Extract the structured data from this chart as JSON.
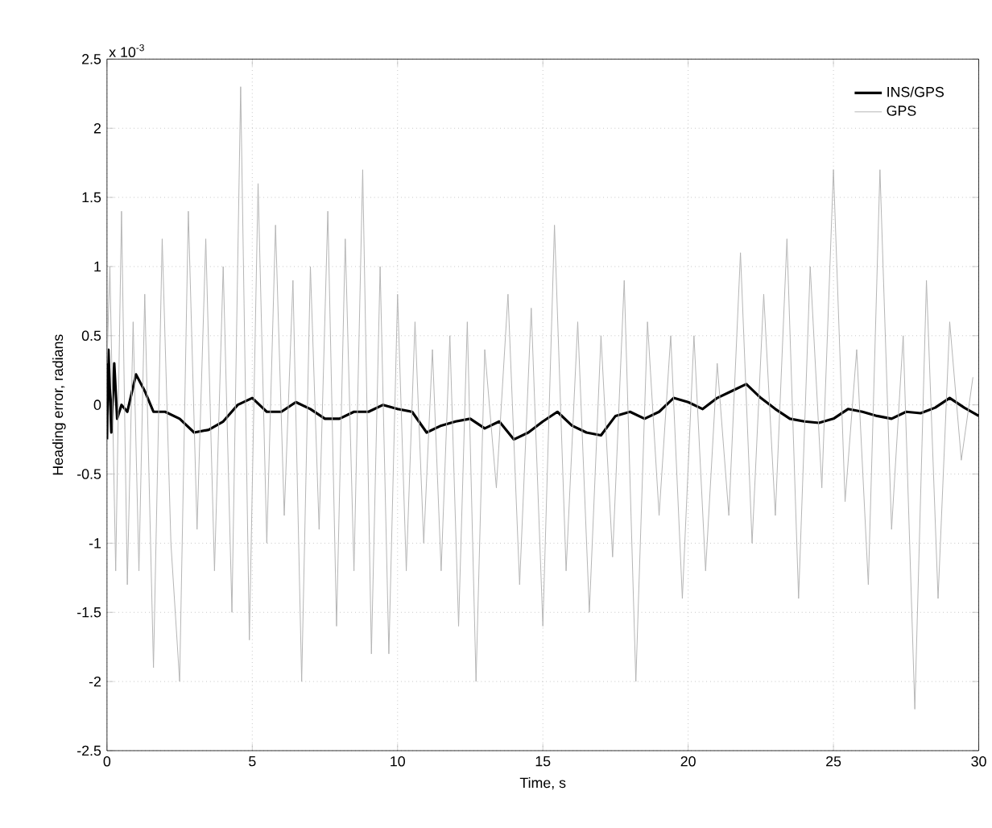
{
  "chart_data": {
    "type": "line",
    "xlabel": "Time, s",
    "ylabel": "Heading error, radians",
    "annotations": [
      "x 10$^{-3}$"
    ],
    "xlim": [
      0,
      30
    ],
    "xticks": [
      0,
      5,
      10,
      15,
      20,
      25,
      30
    ],
    "ylim": [
      -2.5,
      2.5
    ],
    "yticks": [
      -2.5,
      -2,
      -1.5,
      -1,
      -0.5,
      0,
      0.5,
      1,
      1.5,
      2,
      2.5
    ],
    "grid": true,
    "legend": "top right",
    "series": [
      {
        "name": "GPS",
        "color": "#b4b4b4",
        "line_style": "solid",
        "x": [
          0,
          0.1,
          0.3,
          0.5,
          0.7,
          0.9,
          1.1,
          1.3,
          1.6,
          1.9,
          2.2,
          2.5,
          2.8,
          3.1,
          3.4,
          3.7,
          4.0,
          4.3,
          4.6,
          4.9,
          5.2,
          5.5,
          5.8,
          6.1,
          6.4,
          6.7,
          7.0,
          7.3,
          7.6,
          7.9,
          8.2,
          8.5,
          8.8,
          9.1,
          9.4,
          9.7,
          10.0,
          10.3,
          10.6,
          10.9,
          11.2,
          11.5,
          11.8,
          12.1,
          12.4,
          12.7,
          13.0,
          13.4,
          13.8,
          14.2,
          14.6,
          15.0,
          15.4,
          15.8,
          16.2,
          16.6,
          17.0,
          17.4,
          17.8,
          18.2,
          18.6,
          19.0,
          19.4,
          19.8,
          20.2,
          20.6,
          21.0,
          21.4,
          21.8,
          22.2,
          22.6,
          23.0,
          23.4,
          23.8,
          24.2,
          24.6,
          25.0,
          25.4,
          25.8,
          26.2,
          26.6,
          27.0,
          27.4,
          27.8,
          28.2,
          28.6,
          29.0,
          29.4,
          29.8
        ],
        "values": [
          0.3,
          1.0,
          -1.2,
          1.4,
          -1.3,
          0.6,
          -1.2,
          0.8,
          -1.9,
          1.2,
          -1.0,
          -2.0,
          1.4,
          -0.9,
          1.2,
          -1.2,
          1.0,
          -1.5,
          2.3,
          -1.7,
          1.6,
          -1.0,
          1.3,
          -0.8,
          0.9,
          -2.0,
          1.0,
          -0.9,
          1.4,
          -1.6,
          1.2,
          -1.2,
          1.7,
          -1.8,
          1.0,
          -1.8,
          0.8,
          -1.2,
          0.6,
          -1.0,
          0.4,
          -1.2,
          0.5,
          -1.6,
          0.6,
          -2.0,
          0.4,
          -0.6,
          0.8,
          -1.3,
          0.7,
          -1.6,
          1.3,
          -1.2,
          0.6,
          -1.5,
          0.5,
          -1.1,
          0.9,
          -2.0,
          0.6,
          -0.8,
          0.5,
          -1.4,
          0.5,
          -1.2,
          0.3,
          -0.8,
          1.1,
          -1.0,
          0.8,
          -0.8,
          1.2,
          -1.4,
          1.0,
          -0.6,
          1.7,
          -0.7,
          0.4,
          -1.3,
          1.7,
          -0.9,
          0.5,
          -2.2,
          0.9,
          -1.4,
          0.6,
          -0.4,
          0.2
        ]
      },
      {
        "name": "INS/GPS",
        "color": "#000000",
        "line_style": "solid",
        "x": [
          0,
          0.05,
          0.15,
          0.25,
          0.35,
          0.5,
          0.7,
          1.0,
          1.3,
          1.6,
          2.0,
          2.5,
          3.0,
          3.5,
          4.0,
          4.5,
          5.0,
          5.5,
          6.0,
          6.5,
          7.0,
          7.5,
          8.0,
          8.5,
          9.0,
          9.5,
          10.0,
          10.5,
          11.0,
          11.5,
          12.0,
          12.5,
          13.0,
          13.5,
          14.0,
          14.5,
          15.0,
          15.5,
          16.0,
          16.5,
          17.0,
          17.5,
          18.0,
          18.5,
          19.0,
          19.5,
          20.0,
          20.5,
          21.0,
          21.5,
          22.0,
          22.5,
          23.0,
          23.5,
          24.0,
          24.5,
          25.0,
          25.5,
          26.0,
          26.5,
          27.0,
          27.5,
          28.0,
          28.5,
          29.0,
          29.5,
          30.0
        ],
        "values": [
          -0.25,
          0.4,
          -0.2,
          0.3,
          -0.1,
          0.0,
          -0.05,
          0.22,
          0.1,
          -0.05,
          -0.05,
          -0.1,
          -0.2,
          -0.18,
          -0.12,
          0.0,
          0.05,
          -0.05,
          -0.05,
          0.02,
          -0.03,
          -0.1,
          -0.1,
          -0.05,
          -0.05,
          0.0,
          -0.03,
          -0.05,
          -0.2,
          -0.15,
          -0.12,
          -0.1,
          -0.17,
          -0.12,
          -0.25,
          -0.2,
          -0.12,
          -0.05,
          -0.15,
          -0.2,
          -0.22,
          -0.08,
          -0.05,
          -0.1,
          -0.05,
          0.05,
          0.02,
          -0.03,
          0.05,
          0.1,
          0.15,
          0.05,
          -0.03,
          -0.1,
          -0.12,
          -0.13,
          -0.1,
          -0.03,
          -0.05,
          -0.08,
          -0.1,
          -0.05,
          -0.06,
          -0.02,
          0.05,
          -0.02,
          -0.08
        ]
      }
    ]
  }
}
